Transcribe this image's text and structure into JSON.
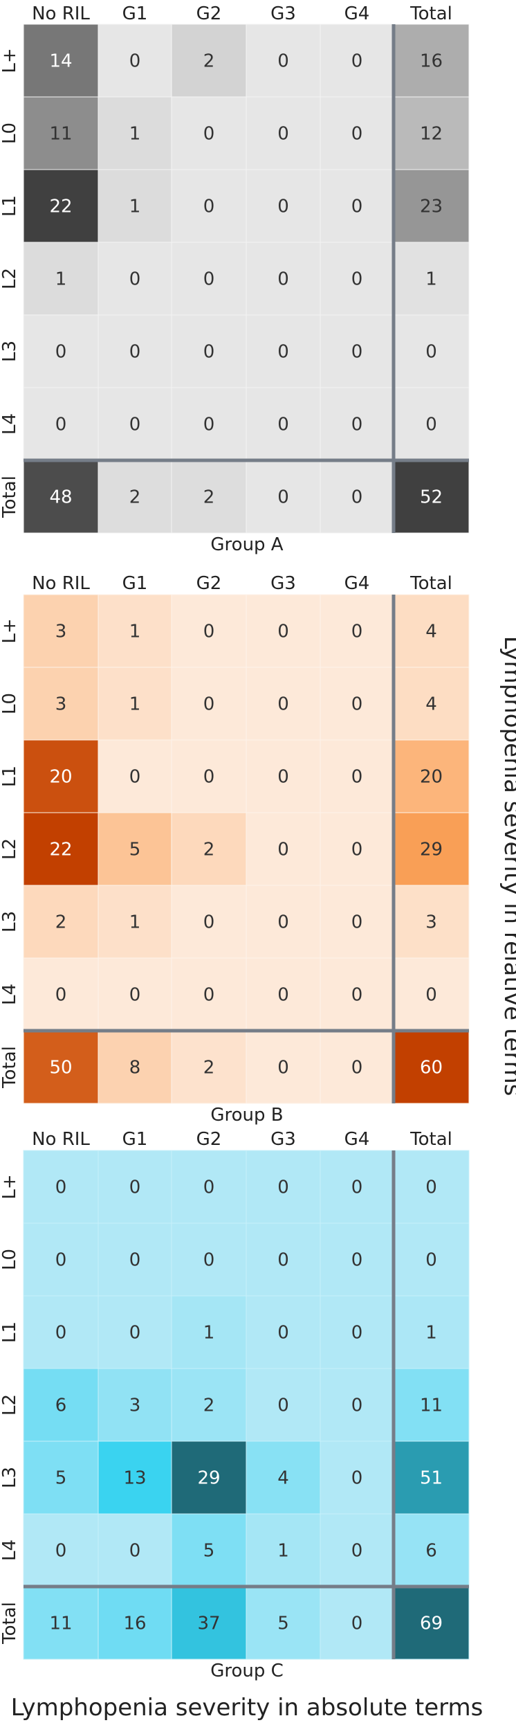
{
  "chart_data": [
    {
      "type": "heatmap",
      "panel_label": "Group A",
      "columns": [
        "No RIL",
        "G1",
        "G2",
        "G3",
        "G4",
        "Total"
      ],
      "rows": [
        "L+",
        "L0",
        "L1",
        "L2",
        "L3",
        "L4",
        "Total"
      ],
      "values": [
        [
          14,
          0,
          2,
          0,
          0,
          16
        ],
        [
          11,
          1,
          0,
          0,
          0,
          12
        ],
        [
          22,
          1,
          0,
          0,
          0,
          23
        ],
        [
          1,
          0,
          0,
          0,
          0,
          1
        ],
        [
          0,
          0,
          0,
          0,
          0,
          0
        ],
        [
          0,
          0,
          0,
          0,
          0,
          0
        ],
        [
          48,
          2,
          2,
          0,
          0,
          52
        ]
      ],
      "palette": {
        "low": "#e6e6e6",
        "high": "#404040",
        "grid": "#f4f4f4",
        "text_dark": "#333333",
        "text_light": "#ffffff"
      }
    },
    {
      "type": "heatmap",
      "panel_label": "Group B",
      "columns": [
        "No RIL",
        "G1",
        "G2",
        "G3",
        "G4",
        "Total"
      ],
      "rows": [
        "L+",
        "L0",
        "L1",
        "L2",
        "L3",
        "L4",
        "Total"
      ],
      "values": [
        [
          3,
          1,
          0,
          0,
          0,
          4
        ],
        [
          3,
          1,
          0,
          0,
          0,
          4
        ],
        [
          20,
          0,
          0,
          0,
          0,
          20
        ],
        [
          22,
          5,
          2,
          0,
          0,
          29
        ],
        [
          2,
          1,
          0,
          0,
          0,
          3
        ],
        [
          0,
          0,
          0,
          0,
          0,
          0
        ],
        [
          50,
          8,
          2,
          0,
          0,
          60
        ]
      ],
      "palette": {
        "low": "#fde9d9",
        "mid": "#fba35a",
        "high": "#c24000",
        "grid": "#fdf3ea",
        "text_dark": "#333333",
        "text_light": "#ffffff"
      }
    },
    {
      "type": "heatmap",
      "panel_label": "Group C",
      "columns": [
        "No RIL",
        "G1",
        "G2",
        "G3",
        "G4",
        "Total"
      ],
      "rows": [
        "L+",
        "L0",
        "L1",
        "L2",
        "L3",
        "L4",
        "Total"
      ],
      "values": [
        [
          0,
          0,
          0,
          0,
          0,
          0
        ],
        [
          0,
          0,
          0,
          0,
          0,
          0
        ],
        [
          0,
          0,
          1,
          0,
          0,
          1
        ],
        [
          6,
          3,
          2,
          0,
          0,
          11
        ],
        [
          5,
          13,
          29,
          4,
          0,
          51
        ],
        [
          0,
          0,
          5,
          1,
          0,
          6
        ],
        [
          11,
          16,
          37,
          5,
          0,
          69
        ]
      ],
      "palette": {
        "low": "#b1e8f6",
        "mid": "#36d2f0",
        "high": "#1f6a78",
        "grid": "#c8f0fa",
        "text_dark": "#333333",
        "text_light": "#ffffff"
      }
    }
  ],
  "axes": {
    "right_label": "Lymphopenia severity in relative terms",
    "bottom_label": "Lymphopenia severity in absolute terms"
  },
  "style": {
    "separator_color": "#757d88"
  }
}
